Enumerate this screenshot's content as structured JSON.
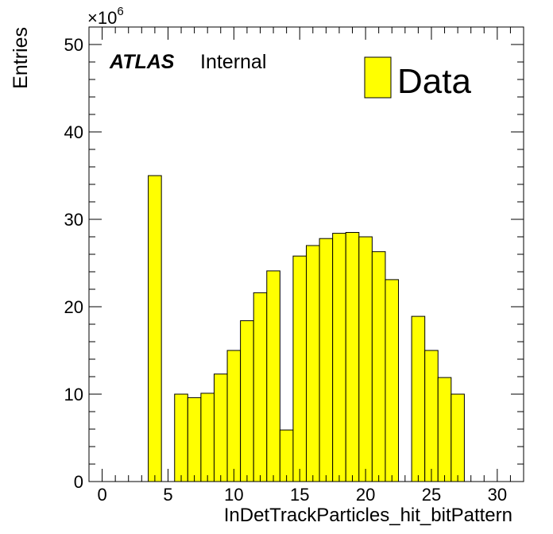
{
  "chart_data": {
    "type": "bar",
    "xlabel": "InDetTrackParticles_hit_bitPattern",
    "ylabel": "Entries",
    "xlim": [
      -1,
      32
    ],
    "ylim": [
      0,
      52
    ],
    "y_multiplier": "×10",
    "y_multiplier_exp": "6",
    "x_ticks": [
      0,
      5,
      10,
      15,
      20,
      25,
      30
    ],
    "y_ticks": [
      0,
      10,
      20,
      30,
      40,
      50
    ],
    "bin_width": 1,
    "bins": [
      {
        "x": 4,
        "value": 35.0
      },
      {
        "x": 6,
        "value": 10.0
      },
      {
        "x": 7,
        "value": 9.6
      },
      {
        "x": 8,
        "value": 10.1
      },
      {
        "x": 9,
        "value": 12.3
      },
      {
        "x": 10,
        "value": 15.0
      },
      {
        "x": 11,
        "value": 18.4
      },
      {
        "x": 12,
        "value": 21.6
      },
      {
        "x": 13,
        "value": 24.1
      },
      {
        "x": 14,
        "value": 5.9
      },
      {
        "x": 15,
        "value": 25.8
      },
      {
        "x": 16,
        "value": 27.0
      },
      {
        "x": 17,
        "value": 27.8
      },
      {
        "x": 18,
        "value": 28.4
      },
      {
        "x": 19,
        "value": 28.5
      },
      {
        "x": 20,
        "value": 28.0
      },
      {
        "x": 21,
        "value": 26.3
      },
      {
        "x": 22,
        "value": 23.1
      },
      {
        "x": 24,
        "value": 18.9
      },
      {
        "x": 25,
        "value": 15.0
      },
      {
        "x": 26,
        "value": 11.9
      },
      {
        "x": 27,
        "value": 10.0
      }
    ],
    "fill_color": "#ffff00",
    "line_color": "#000000",
    "legend": {
      "entries": [
        "Data"
      ],
      "position": "top-right"
    },
    "annotation": {
      "atlas": "ATLAS",
      "status": "Internal"
    }
  }
}
